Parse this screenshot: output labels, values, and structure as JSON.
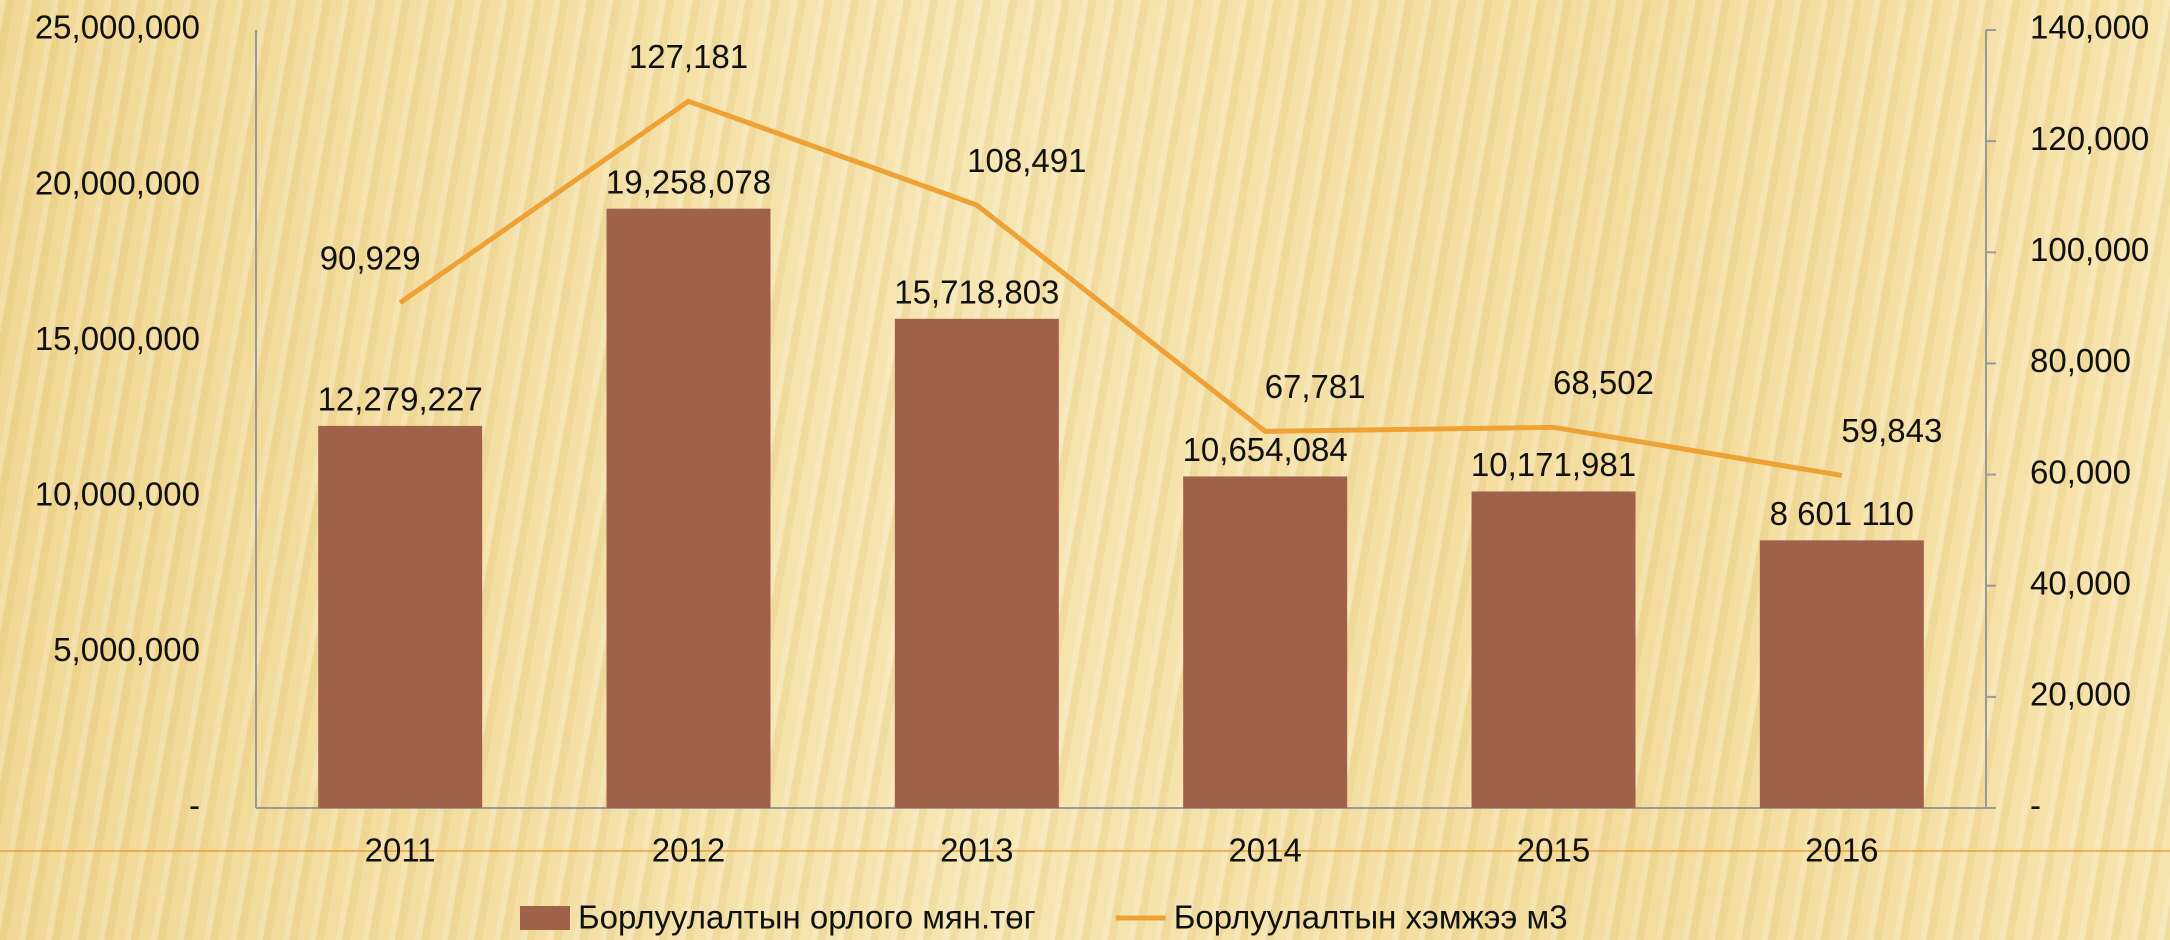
{
  "chart_data": {
    "type": "bar",
    "categories": [
      "2011",
      "2012",
      "2013",
      "2014",
      "2015",
      "2016"
    ],
    "series": [
      {
        "name": "Борлуулалтын орлого мян.төг",
        "type": "bar",
        "color": "#a0614b",
        "values": [
          12279227,
          19258078,
          15718803,
          10654084,
          10171981,
          8601110
        ],
        "value_labels": [
          "12,279,227",
          "19,258,078",
          "15,718,803",
          "10,654,084",
          "10,171,981",
          "8 601 110"
        ]
      },
      {
        "name": "Борлуулалтын хэмжээ м3",
        "type": "line",
        "axis": "y2",
        "color": "#eea236",
        "values": [
          90929,
          127181,
          108491,
          67781,
          68502,
          59843
        ],
        "value_labels": [
          "90,929",
          "127,181",
          "108,491",
          "67,781",
          "68,502",
          "59,843"
        ]
      }
    ],
    "ylim": [
      0,
      25000000
    ],
    "yticks": [
      {
        "value": 0,
        "label": "-"
      },
      {
        "value": 5000000,
        "label": "5,000,000"
      },
      {
        "value": 10000000,
        "label": "10,000,000"
      },
      {
        "value": 15000000,
        "label": "15,000,000"
      },
      {
        "value": 20000000,
        "label": "20,000,000"
      },
      {
        "value": 25000000,
        "label": "25,000,000"
      }
    ],
    "y2lim": [
      0,
      140000
    ],
    "y2ticks": [
      {
        "value": 0,
        "label": "-"
      },
      {
        "value": 20000,
        "label": "20,000"
      },
      {
        "value": 40000,
        "label": "40,000"
      },
      {
        "value": 60000,
        "label": "60,000"
      },
      {
        "value": 80000,
        "label": "80,000"
      },
      {
        "value": 100000,
        "label": "100,000"
      },
      {
        "value": 120000,
        "label": "120,000"
      },
      {
        "value": 140000,
        "label": "140,000"
      }
    ],
    "legend": "bottom"
  }
}
